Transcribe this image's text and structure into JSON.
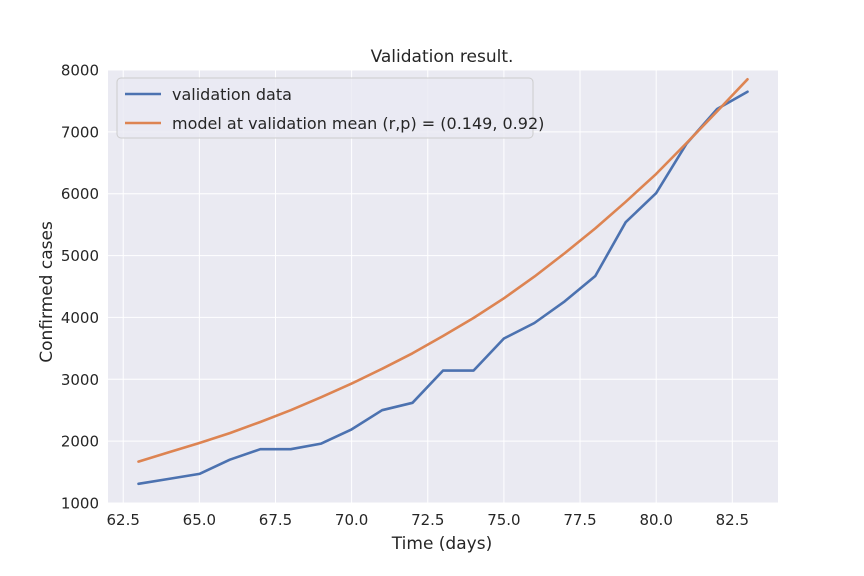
{
  "chart_data": {
    "type": "line",
    "title": "Validation result.",
    "xlabel": "Time (days)",
    "ylabel": "Confirmed cases",
    "xlim": [
      62.0,
      84.0
    ],
    "ylim": [
      1000,
      8000
    ],
    "xticks": [
      62.5,
      65.0,
      67.5,
      70.0,
      72.5,
      75.0,
      77.5,
      80.0,
      82.5
    ],
    "xtick_labels": [
      "62.5",
      "65.0",
      "67.5",
      "70.0",
      "72.5",
      "75.0",
      "77.5",
      "80.0",
      "82.5"
    ],
    "yticks": [
      1000,
      2000,
      3000,
      4000,
      5000,
      6000,
      7000,
      8000
    ],
    "ytick_labels": [
      "1000",
      "2000",
      "3000",
      "4000",
      "5000",
      "6000",
      "7000",
      "8000"
    ],
    "grid": true,
    "legend_position": "top-left",
    "background_color": "#eaeaf2",
    "series": [
      {
        "name": "validation data",
        "color": "#4c72b0",
        "x": [
          63,
          64,
          65,
          66,
          67,
          68,
          69,
          70,
          71,
          72,
          73,
          74,
          75,
          76,
          77,
          78,
          79,
          80,
          81,
          82,
          83
        ],
        "y": [
          1310,
          1390,
          1470,
          1700,
          1870,
          1870,
          1960,
          2190,
          2500,
          2620,
          3140,
          3140,
          3660,
          3910,
          4260,
          4670,
          5540,
          6010,
          6810,
          7370,
          7650
        ]
      },
      {
        "name": "model at validation mean (r,p) = (0.149, 0.92)",
        "color": "#dd8452",
        "x": [
          63,
          64,
          65,
          66,
          67,
          68,
          69,
          70,
          71,
          72,
          73,
          74,
          75,
          76,
          77,
          78,
          79,
          80,
          81,
          82,
          83
        ],
        "y": [
          1670,
          1820,
          1970,
          2130,
          2310,
          2500,
          2710,
          2930,
          3170,
          3420,
          3700,
          3990,
          4310,
          4660,
          5040,
          5440,
          5870,
          6320,
          6820,
          7330,
          7850
        ]
      }
    ]
  }
}
